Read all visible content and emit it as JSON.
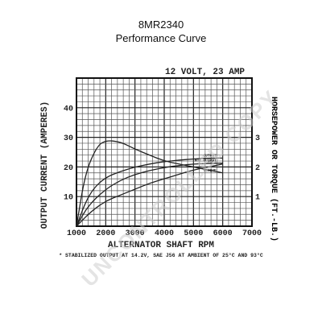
{
  "page": {
    "title": "8MR2340",
    "subtitle": "Performance Curve",
    "watermark": "UNCONTROLLED COPY"
  },
  "chart_data": {
    "type": "line",
    "subtitle": "12 VOLT, 23 AMP",
    "xlabel": "ALTERNATOR SHAFT RPM",
    "ylabel": "OUTPUT CURRENT (AMPERES)",
    "y2label": "HORSEPOWER OR TORQUE (FT.-LB.)",
    "xlim": [
      1000,
      7000
    ],
    "ylim": [
      0,
      50
    ],
    "y2lim": [
      0,
      5
    ],
    "xticks": [
      "1000",
      "2000",
      "3000",
      "4000",
      "5000",
      "6000",
      "7000"
    ],
    "yticks": [
      "10",
      "20",
      "30",
      "40"
    ],
    "y2ticks": [
      "1",
      "2",
      "3"
    ],
    "grid": true,
    "footnote": "* STABILIZED OUTPUT AT 14.2V, SAE J56 AT AMBIENT OF 25°C AND 93°C",
    "series": [
      {
        "name": "OUTPUT",
        "axis": "left",
        "x": [
          1000,
          1300,
          1600,
          2000,
          2500,
          3000,
          3500,
          4000,
          4500,
          5000,
          5500,
          6000
        ],
        "y": [
          0,
          8,
          13,
          16.5,
          18.5,
          20,
          21,
          21.8,
          22.3,
          22.7,
          23,
          23
        ]
      },
      {
        "name": "HOT OUTPUT",
        "axis": "left",
        "x": [
          1000,
          1400,
          2000,
          2500,
          3000,
          3500,
          4000,
          4500,
          5000,
          5500,
          6000
        ],
        "y": [
          0,
          7,
          12.5,
          15.5,
          17.5,
          18.8,
          19.8,
          20.5,
          21,
          21.2,
          21.3
        ]
      },
      {
        "name": "H.P.",
        "axis": "right",
        "x": [
          1000,
          1500,
          2000,
          2500,
          3000,
          3500,
          4000,
          4500,
          5000,
          5500,
          6000
        ],
        "y": [
          0,
          0.5,
          0.85,
          1.05,
          1.25,
          1.45,
          1.6,
          1.75,
          1.9,
          2.0,
          2.1
        ]
      },
      {
        "name": "TORQUE",
        "axis": "right",
        "x": [
          1000,
          1300,
          1700,
          2000,
          2500,
          3000,
          3500,
          4000,
          4500,
          5000,
          5500,
          6000
        ],
        "y": [
          0,
          1.8,
          2.7,
          2.9,
          2.85,
          2.6,
          2.4,
          2.2,
          2.1,
          2.0,
          1.9,
          1.8
        ]
      }
    ]
  }
}
